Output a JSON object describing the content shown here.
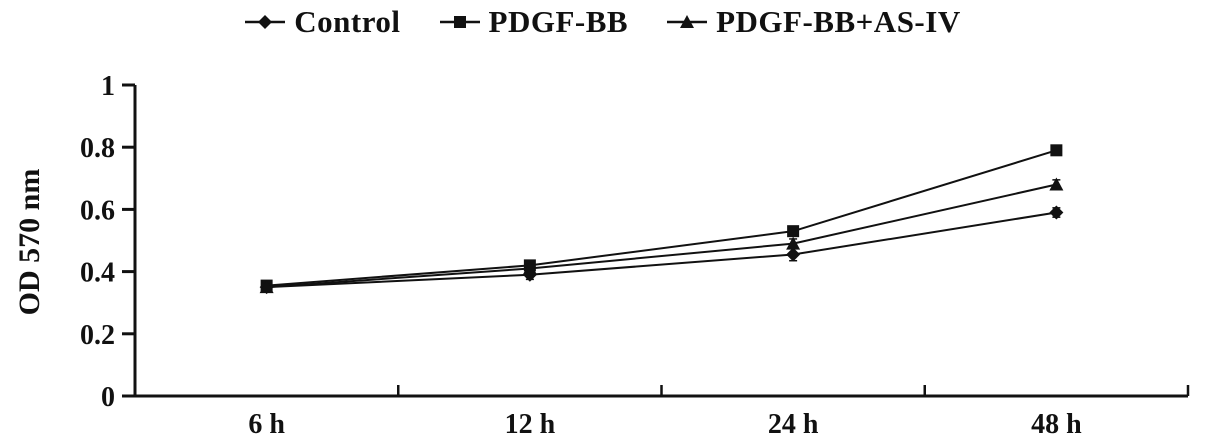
{
  "chart_data": {
    "type": "line",
    "title": "",
    "ylabel": "OD 570 nm",
    "xlabel": "",
    "categories": [
      "6 h",
      "12 h",
      "24 h",
      "48 h"
    ],
    "series": [
      {
        "name": "Control",
        "marker": "diamond",
        "values": [
          0.35,
          0.39,
          0.455,
          0.59
        ],
        "errors": [
          0.015,
          0.015,
          0.02,
          0.015
        ]
      },
      {
        "name": "PDGF-BB",
        "marker": "square",
        "values": [
          0.355,
          0.42,
          0.53,
          0.79
        ],
        "errors": [
          0.015,
          0.015,
          0.015,
          0.015
        ]
      },
      {
        "name": "PDGF-BB+AS-IV",
        "marker": "triangle",
        "values": [
          0.35,
          0.41,
          0.49,
          0.68
        ],
        "errors": [
          0.015,
          0.015,
          0.015,
          0.015
        ]
      }
    ],
    "ylim": [
      0,
      1
    ],
    "yticks": [
      0,
      0.2,
      0.4,
      0.6,
      0.8,
      1
    ],
    "ytick_labels": [
      "0",
      "0.2",
      "0.4",
      "0.6",
      "0.8",
      "1"
    ],
    "grid": false,
    "legend_position": "top",
    "line_color": "#111111",
    "background_color": "#ffffff"
  }
}
